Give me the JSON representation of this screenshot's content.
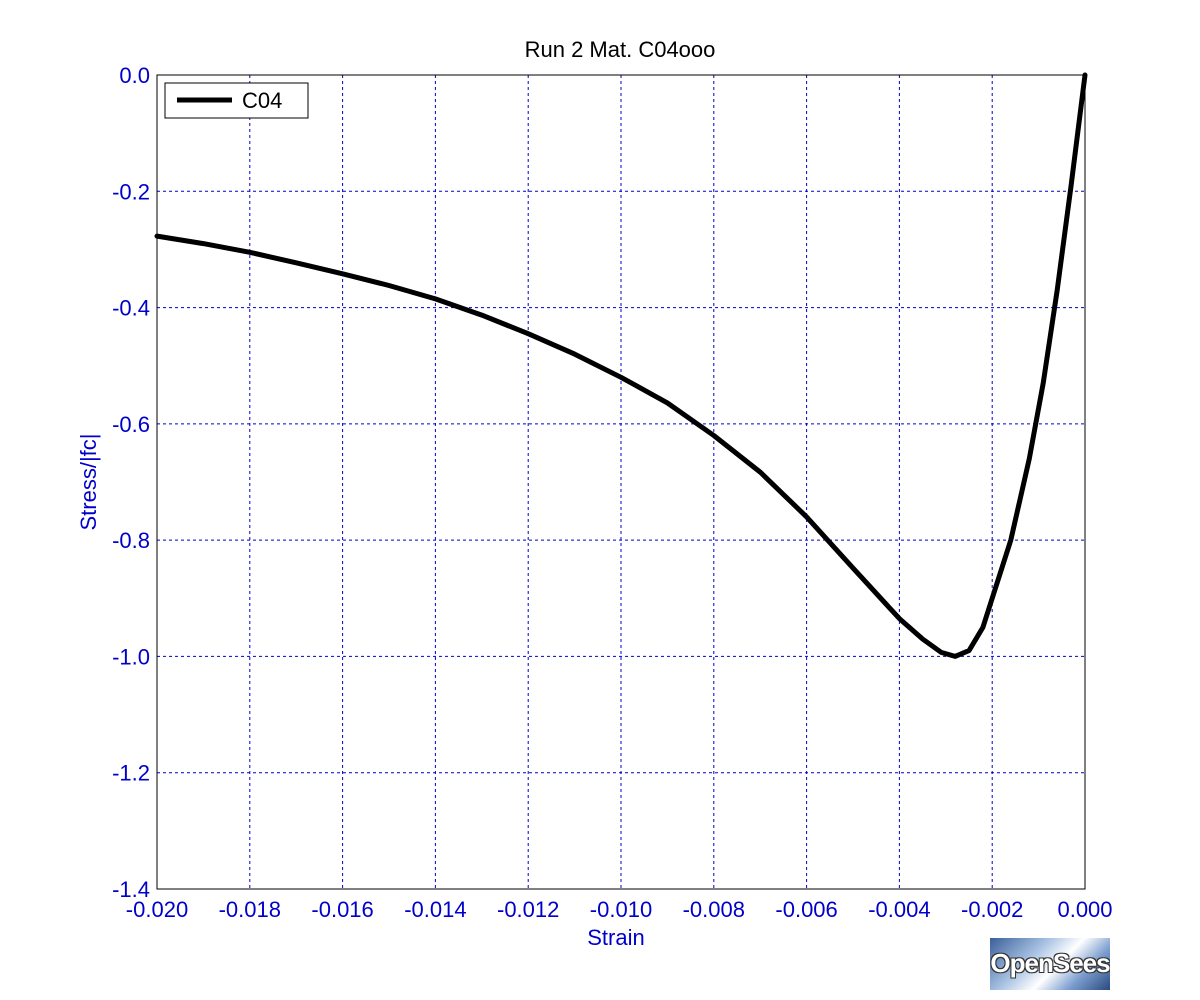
{
  "chart_data": {
    "type": "line",
    "title": "Run 2   Mat. C04ooo",
    "xlabel": "Strain",
    "ylabel": "Stress/|fc|",
    "xlim": [
      -0.02,
      0.0
    ],
    "ylim": [
      -1.4,
      0.0
    ],
    "xticks": [
      "-0.020",
      "-0.018",
      "-0.016",
      "-0.014",
      "-0.012",
      "-0.010",
      "-0.008",
      "-0.006",
      "-0.004",
      "-0.002",
      "0.000"
    ],
    "yticks": [
      "0.0",
      "-0.2",
      "-0.4",
      "-0.6",
      "-0.8",
      "-1.0",
      "-1.2",
      "-1.4"
    ],
    "grid": true,
    "legend_position": "top-left",
    "series": [
      {
        "name": "C04",
        "color": "#000000",
        "x": [
          -0.02,
          -0.019,
          -0.018,
          -0.017,
          -0.016,
          -0.015,
          -0.014,
          -0.013,
          -0.012,
          -0.011,
          -0.01,
          -0.009,
          -0.008,
          -0.007,
          -0.006,
          -0.005,
          -0.004,
          -0.0035,
          -0.0031,
          -0.0028,
          -0.0025,
          -0.0022,
          -0.002,
          -0.0016,
          -0.0012,
          -0.0009,
          -0.0006,
          -0.0003,
          0.0
        ],
        "y": [
          -0.277,
          -0.29,
          -0.305,
          -0.323,
          -0.342,
          -0.362,
          -0.385,
          -0.413,
          -0.445,
          -0.48,
          -0.52,
          -0.564,
          -0.62,
          -0.683,
          -0.76,
          -0.848,
          -0.935,
          -0.97,
          -0.993,
          -1.0,
          -0.99,
          -0.95,
          -0.9,
          -0.8,
          -0.66,
          -0.53,
          -0.37,
          -0.19,
          0.0
        ]
      }
    ]
  },
  "watermark": {
    "text": "OpenSees"
  }
}
